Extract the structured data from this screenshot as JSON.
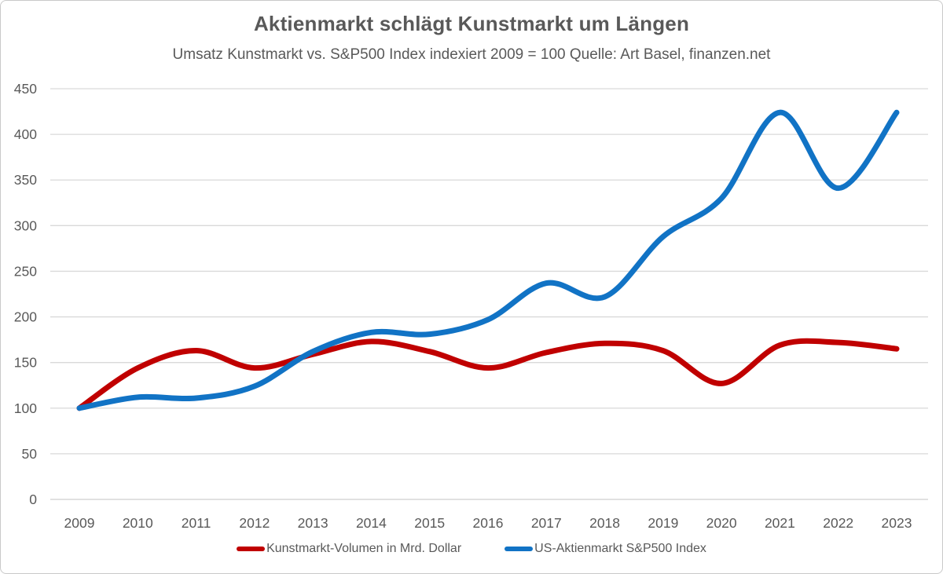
{
  "chart_data": {
    "type": "line",
    "title": "Aktienmarkt schlägt Kunstmarkt um Längen",
    "subtitle": "Umsatz Kunstmarkt vs. S&P500 Index indexiert 2009 = 100 Quelle: Art Basel, finanzen.net",
    "x": [
      "2009",
      "2010",
      "2011",
      "2012",
      "2013",
      "2014",
      "2015",
      "2016",
      "2017",
      "2018",
      "2019",
      "2020",
      "2021",
      "2022",
      "2023"
    ],
    "series": [
      {
        "name": "Kunstmarkt-Volumen in Mrd. Dollar",
        "color": "#C00000",
        "values": [
          100,
          144,
          163,
          144,
          159,
          173,
          162,
          144,
          161,
          171,
          163,
          127,
          169,
          172,
          165
        ]
      },
      {
        "name": "US-Aktienmarkt S&P500 Index",
        "color": "#1173C5",
        "values": [
          100,
          112,
          111,
          124,
          162,
          183,
          181,
          197,
          237,
          222,
          288,
          330,
          424,
          341,
          424
        ]
      }
    ],
    "ylim": [
      0,
      450
    ],
    "yticks": [
      0,
      50,
      100,
      150,
      200,
      250,
      300,
      350,
      400,
      450
    ],
    "grid": "horizontal",
    "legend_position": "bottom",
    "smoothed": true
  },
  "colors": {
    "text": "#595959",
    "gridline": "#D9D9D9",
    "axis_line": "#CFCFCF",
    "border": "#C9C9C9",
    "background": "#FFFFFF"
  }
}
